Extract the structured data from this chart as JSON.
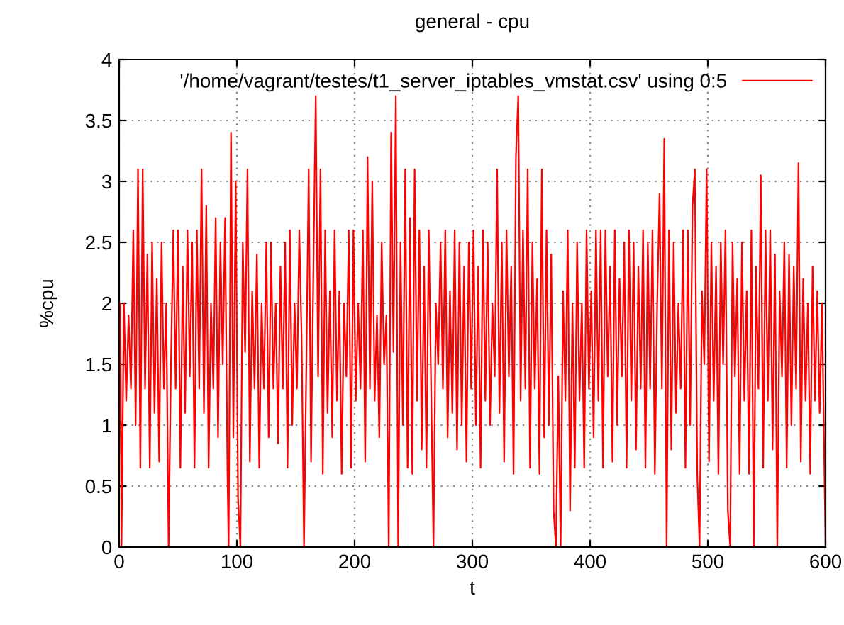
{
  "chart_data": {
    "type": "line",
    "title": "general - cpu",
    "xlabel": "t",
    "ylabel": "%cpu",
    "xlim": [
      0,
      600
    ],
    "xticks": [
      0,
      100,
      200,
      300,
      400,
      500,
      600
    ],
    "ylim": [
      0,
      4
    ],
    "yticks": [
      0,
      0.5,
      1,
      1.5,
      2,
      2.5,
      3,
      3.5,
      4
    ],
    "grid": true,
    "legend": "top right",
    "marker": "none",
    "line_style": "solid",
    "series": [
      {
        "name": "'/home/vagrant/testes/t1_server_iptables_vmstat.csv' using 0:5",
        "color": "#ff0000",
        "x": [
          0,
          1,
          2,
          4,
          6,
          8,
          10,
          12,
          14,
          16,
          18,
          20,
          22,
          24,
          26,
          28,
          30,
          32,
          34,
          36,
          38,
          40,
          42,
          44,
          46,
          48,
          50,
          52,
          54,
          56,
          58,
          60,
          62,
          64,
          66,
          68,
          70,
          72,
          74,
          76,
          78,
          80,
          82,
          84,
          86,
          88,
          90,
          92,
          93,
          95,
          97,
          99,
          101,
          103,
          105,
          107,
          109,
          111,
          113,
          115,
          117,
          119,
          121,
          123,
          125,
          127,
          129,
          131,
          133,
          135,
          137,
          139,
          141,
          143,
          145,
          147,
          149,
          151,
          153,
          155,
          157,
          159,
          161,
          163,
          165,
          167,
          169,
          171,
          173,
          175,
          177,
          179,
          181,
          183,
          185,
          187,
          189,
          191,
          193,
          195,
          197,
          199,
          201,
          203,
          205,
          207,
          209,
          211,
          213,
          215,
          217,
          219,
          221,
          223,
          225,
          227,
          229,
          231,
          233,
          235,
          237,
          239,
          241,
          243,
          245,
          247,
          249,
          251,
          253,
          255,
          257,
          259,
          261,
          263,
          265,
          267,
          269,
          271,
          273,
          275,
          277,
          279,
          281,
          283,
          285,
          287,
          289,
          291,
          293,
          295,
          297,
          299,
          301,
          303,
          305,
          307,
          309,
          311,
          313,
          315,
          317,
          319,
          321,
          323,
          325,
          327,
          329,
          331,
          333,
          335,
          337,
          339,
          341,
          343,
          345,
          347,
          349,
          351,
          353,
          355,
          357,
          359,
          361,
          363,
          365,
          367,
          369,
          371,
          373,
          375,
          377,
          379,
          381,
          383,
          385,
          387,
          389,
          391,
          393,
          395,
          397,
          399,
          401,
          403,
          405,
          407,
          409,
          411,
          413,
          415,
          417,
          419,
          421,
          423,
          425,
          427,
          429,
          431,
          433,
          435,
          437,
          439,
          441,
          443,
          445,
          447,
          449,
          451,
          453,
          455,
          457,
          459,
          461,
          463,
          465,
          467,
          469,
          471,
          473,
          475,
          477,
          479,
          481,
          483,
          485,
          487,
          489,
          491,
          493,
          495,
          497,
          499,
          501,
          503,
          505,
          507,
          509,
          511,
          513,
          515,
          517,
          519,
          521,
          523,
          525,
          527,
          529,
          531,
          533,
          535,
          537,
          539,
          541,
          543,
          545,
          547,
          549,
          551,
          553,
          555,
          557,
          559,
          561,
          563,
          565,
          567,
          569,
          571,
          573,
          575,
          577,
          579,
          581,
          583,
          585,
          587,
          589,
          591,
          593,
          595,
          597,
          599,
          600
        ],
        "values": [
          0.75,
          2.0,
          0,
          2.0,
          1.2,
          1.9,
          1.3,
          2.6,
          1.0,
          3.1,
          0.65,
          3.1,
          1.3,
          2.4,
          0.65,
          2.5,
          1.1,
          2.2,
          0.7,
          2.5,
          1.3,
          2.0,
          0,
          1.5,
          2.6,
          1.3,
          2.6,
          0.65,
          2.3,
          1.1,
          2.6,
          1.4,
          2.5,
          0.65,
          2.6,
          1.3,
          3.1,
          1.1,
          2.8,
          0.65,
          2.0,
          1.3,
          2.7,
          0.9,
          2.5,
          1.5,
          2.7,
          0.6,
          0,
          3.4,
          0.9,
          3.0,
          0.4,
          0,
          2.5,
          1.6,
          3.1,
          0.7,
          2.1,
          1.3,
          2.4,
          0.65,
          2.0,
          1.3,
          2.5,
          0.9,
          2.5,
          1.3,
          2.0,
          0.85,
          2.3,
          1.3,
          2.5,
          0.65,
          2.6,
          1.0,
          2.0,
          1.3,
          2.6,
          1.7,
          0,
          1.5,
          3.1,
          0.7,
          2.3,
          3.7,
          1.4,
          3.1,
          0.6,
          2.6,
          1.1,
          2.1,
          0.9,
          2.6,
          1.2,
          2.1,
          0.6,
          2.0,
          1.4,
          2.6,
          0.65,
          2.6,
          1.2,
          2.0,
          1.3,
          2.6,
          0.7,
          3.2,
          1.3,
          3.0,
          1.2,
          1.9,
          0.9,
          2.5,
          1.5,
          1.9,
          0,
          3.4,
          1.6,
          3.7,
          0,
          2.5,
          1.0,
          3.1,
          0.65,
          2.7,
          0.6,
          3.1,
          1.2,
          2.6,
          0.8,
          2.3,
          0.65,
          2.6,
          1.3,
          0,
          2.0,
          1.5,
          2.5,
          1.3,
          2.6,
          0.9,
          2.1,
          1.1,
          2.6,
          0.8,
          2.5,
          1.0,
          2.3,
          0.7,
          2.5,
          1.3,
          2.6,
          1.0,
          2.3,
          0.65,
          2.6,
          1.2,
          2.5,
          1.0,
          2.0,
          1.4,
          3.1,
          1.1,
          2.5,
          0.7,
          2.6,
          1.4,
          2.3,
          0.6,
          3.2,
          3.7,
          1.2,
          2.6,
          1.3,
          3.1,
          0.65,
          2.5,
          1.3,
          2.2,
          0.6,
          3.1,
          0.9,
          2.6,
          1.0,
          2.4,
          0.3,
          0,
          1.4,
          0,
          2.1,
          1.2,
          2.6,
          0.3,
          2.0,
          0.65,
          2.5,
          1.2,
          2.0,
          0.65,
          2.6,
          1.3,
          2.1,
          0.9,
          2.6,
          1.2,
          2.6,
          0.65,
          2.6,
          1.4,
          2.3,
          0.7,
          2.6,
          1.0,
          2.2,
          1.4,
          2.5,
          0.65,
          2.6,
          1.2,
          2.5,
          0.8,
          2.3,
          1.3,
          2.6,
          0.65,
          2.5,
          1.3,
          2.6,
          0.6,
          2.0,
          2.9,
          1.3,
          3.35,
          0,
          2.6,
          0.8,
          2.5,
          1.1,
          2.0,
          1.3,
          2.6,
          0.65,
          2.6,
          1.0,
          2.8,
          3.1,
          0.6,
          0,
          2.1,
          1.5,
          3.1,
          0.7,
          2.5,
          1.2,
          2.3,
          0.6,
          2.5,
          1.5,
          2.6,
          0.3,
          0,
          2.5,
          1.4,
          2.2,
          0.6,
          2.5,
          1.2,
          2.1,
          0.6,
          2.6,
          0,
          2.3,
          1.3,
          3.05,
          0.65,
          2.6,
          1.2,
          2.6,
          0.8,
          2.4,
          0,
          2.1,
          1.4,
          2.5,
          0.65,
          2.4,
          1.0,
          2.3,
          1.3,
          3.15,
          0.7,
          2.2,
          1.2,
          2.0,
          0.6,
          2.3,
          1.2,
          2.1,
          1.1,
          2.0,
          0.65,
          0
        ]
      }
    ]
  }
}
